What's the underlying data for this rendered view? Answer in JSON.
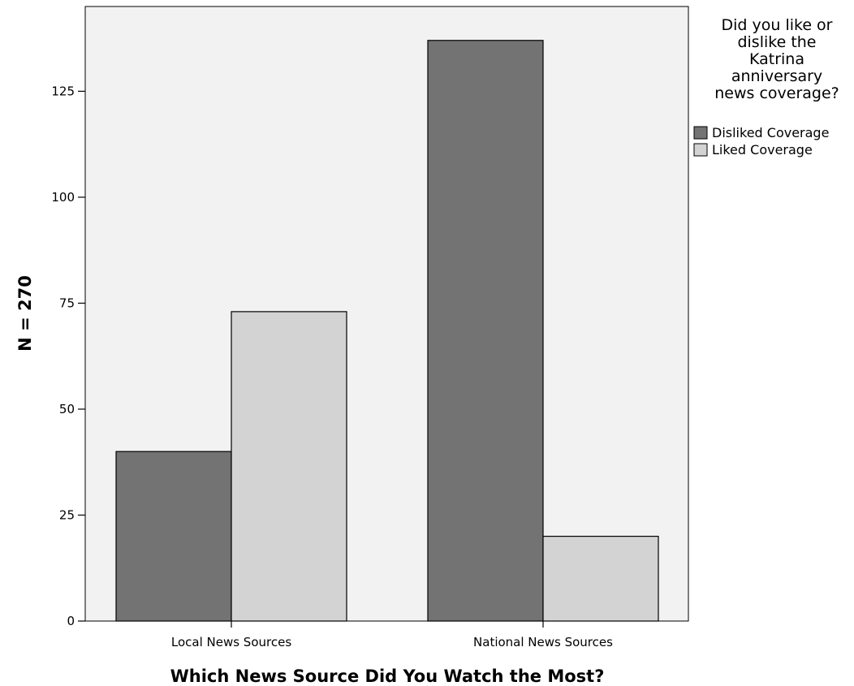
{
  "chart_data": {
    "type": "bar",
    "title": "",
    "xlabel": "Which News Source Did You Watch the Most?",
    "ylabel": "N = 270",
    "categories": [
      "Local News Sources",
      "National News Sources"
    ],
    "series": [
      {
        "name": "Disliked Coverage",
        "values": [
          40,
          137
        ],
        "color": "#737373"
      },
      {
        "name": "Liked Coverage",
        "values": [
          73,
          20
        ],
        "color": "#d3d3d3"
      }
    ],
    "ylim": [
      0,
      145
    ],
    "yticks": [
      0,
      25,
      50,
      75,
      100,
      125
    ],
    "legend": {
      "title_lines": [
        "Did you like or",
        "dislike the",
        "Katrina",
        "anniversary",
        "news coverage?"
      ],
      "placement": "top-right"
    },
    "grid": false,
    "plot_background": "#f2f2f2"
  }
}
